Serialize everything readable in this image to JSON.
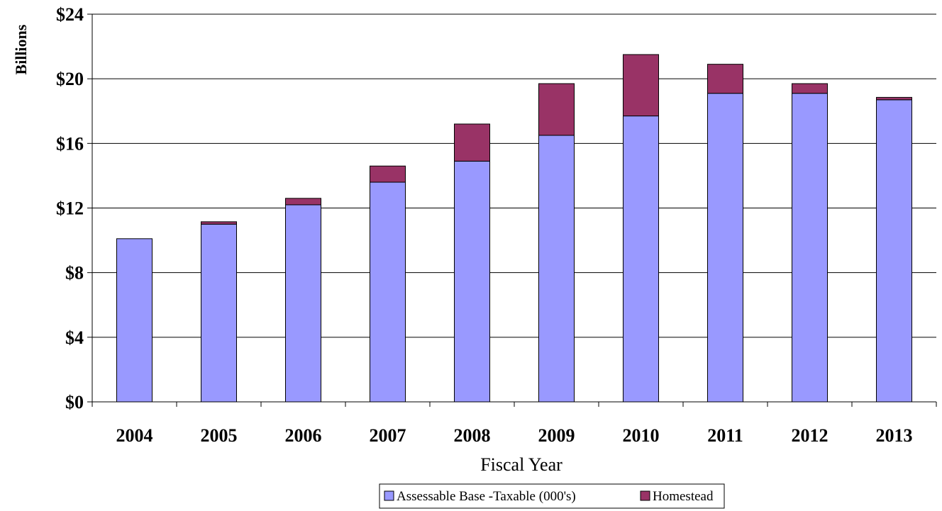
{
  "chart_data": {
    "type": "bar",
    "stacked": true,
    "categories": [
      "2004",
      "2005",
      "2006",
      "2007",
      "2008",
      "2009",
      "2010",
      "2011",
      "2012",
      "2013"
    ],
    "series": [
      {
        "name": "Assessable Base -Taxable (000's)",
        "color": "#9999ff",
        "values": [
          10.1,
          11.0,
          12.2,
          13.6,
          14.9,
          16.5,
          17.7,
          19.1,
          19.1,
          18.7
        ]
      },
      {
        "name": "Homestead",
        "color": "#993366",
        "values": [
          0.0,
          0.15,
          0.4,
          1.0,
          2.3,
          3.2,
          3.8,
          1.8,
          0.6,
          0.15
        ]
      }
    ],
    "title": "",
    "xlabel": "Fiscal Year",
    "ylabel": "Billions",
    "ylim": [
      0,
      24
    ],
    "yticks": [
      0,
      4,
      8,
      12,
      16,
      20,
      24
    ],
    "ytick_labels": [
      "$0",
      "$4",
      "$8",
      "$12",
      "$16",
      "$20",
      "$24"
    ],
    "grid": "horizontal",
    "legend_position": "bottom"
  }
}
